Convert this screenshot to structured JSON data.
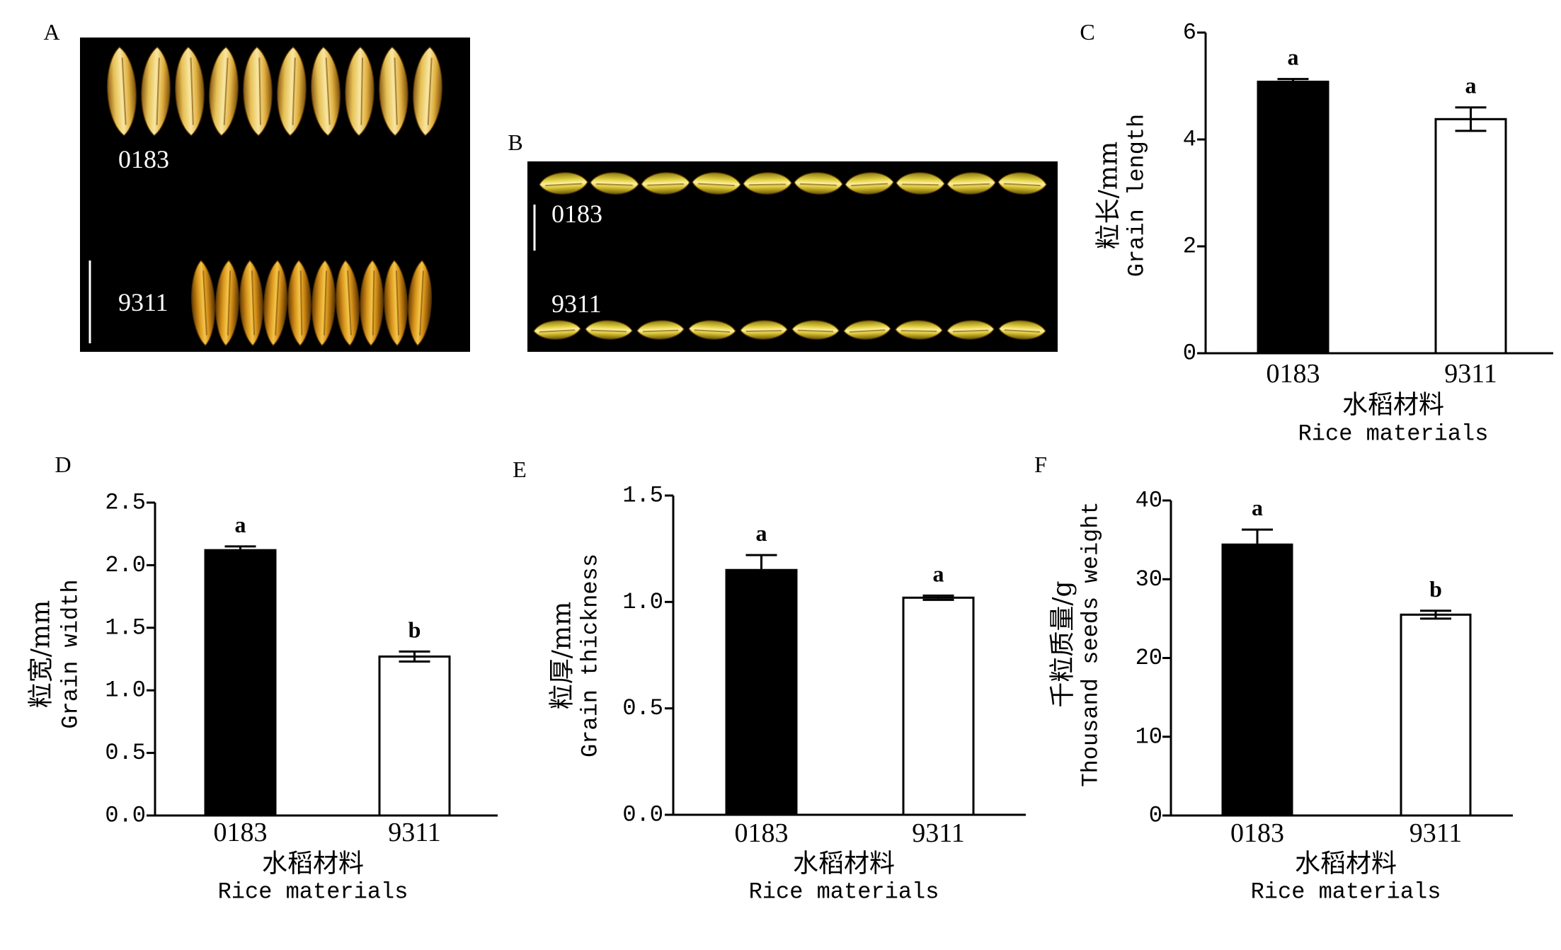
{
  "panels": {
    "A": {
      "label": "A",
      "photo_labels": [
        "0183",
        "9311"
      ]
    },
    "B": {
      "label": "B",
      "photo_labels": [
        "0183",
        "9311"
      ]
    }
  },
  "colors": {
    "photo_background": "#000000"
  },
  "chart_data": [
    {
      "panel": "C",
      "type": "bar",
      "categories": [
        "0183",
        "9311"
      ],
      "values": [
        5.08,
        4.38
      ],
      "errors": [
        0.05,
        0.22
      ],
      "significance": [
        "a",
        "a"
      ],
      "bar_colors": [
        "#000000",
        "#ffffff"
      ],
      "ylabel": "粒长/mm",
      "ylabel_en": "Grain length",
      "xlabel": "水稻材料",
      "xlabel_en": "Rice materials",
      "yticks": [
        "0",
        "2",
        "4",
        "6"
      ],
      "ylim": [
        0,
        6
      ],
      "grid": false
    },
    {
      "panel": "D",
      "type": "bar",
      "categories": [
        "0183",
        "9311"
      ],
      "values": [
        2.12,
        1.27
      ],
      "errors": [
        0.03,
        0.04
      ],
      "significance": [
        "a",
        "b"
      ],
      "bar_colors": [
        "#000000",
        "#ffffff"
      ],
      "ylabel": "粒宽/mm",
      "ylabel_en": "Grain width",
      "xlabel": "水稻材料",
      "xlabel_en": "Rice materials",
      "yticks": [
        "0.0",
        "0.5",
        "1.0",
        "1.5",
        "2.0",
        "2.5"
      ],
      "ylim": [
        0,
        2.5
      ],
      "grid": false
    },
    {
      "panel": "E",
      "type": "bar",
      "categories": [
        "0183",
        "9311"
      ],
      "values": [
        1.15,
        1.02
      ],
      "errors": [
        0.07,
        0.01
      ],
      "significance": [
        "a",
        "a"
      ],
      "bar_colors": [
        "#000000",
        "#ffffff"
      ],
      "ylabel": "粒厚/mm",
      "ylabel_en": "Grain thickness",
      "xlabel": "水稻材料",
      "xlabel_en": "Rice materials",
      "yticks": [
        "0.0",
        "0.5",
        "1.0",
        "1.5"
      ],
      "ylim": [
        0,
        1.5
      ],
      "grid": false
    },
    {
      "panel": "F",
      "type": "bar",
      "categories": [
        "0183",
        "9311"
      ],
      "values": [
        34.4,
        25.5
      ],
      "errors": [
        1.9,
        0.5
      ],
      "significance": [
        "a",
        "b"
      ],
      "bar_colors": [
        "#000000",
        "#ffffff"
      ],
      "ylabel": "千粒质量/g",
      "ylabel_en": "Thousand seeds weight",
      "xlabel": "水稻材料",
      "xlabel_en": "Rice materials",
      "yticks": [
        "0",
        "10",
        "20",
        "30",
        "40"
      ],
      "ylim": [
        0,
        40
      ],
      "grid": false
    }
  ]
}
